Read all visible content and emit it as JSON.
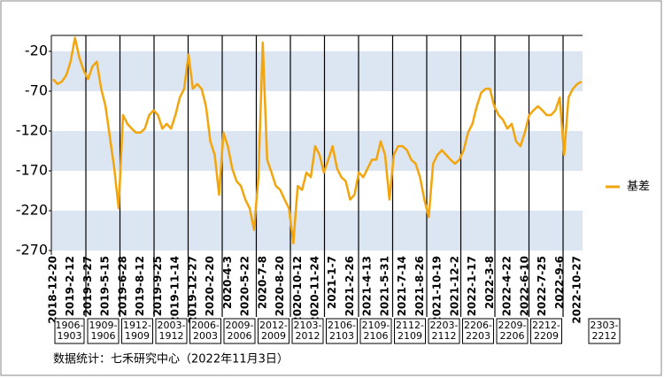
{
  "chart_data": {
    "type": "line",
    "categories": [
      "2018-12-20",
      null,
      null,
      null,
      "2019-2-12",
      null,
      null,
      null,
      "2019-3-27",
      null,
      null,
      null,
      "2019-5-15",
      null,
      null,
      null,
      "2019-6-28",
      null,
      null,
      null,
      "2019-8-12",
      null,
      null,
      null,
      "2019-9-25",
      null,
      null,
      null,
      "2019-11-14",
      null,
      null,
      null,
      "2019-12-27",
      null,
      null,
      null,
      "2020-2-20",
      null,
      null,
      null,
      "2020-4-3",
      null,
      null,
      null,
      "2020-5-22",
      null,
      null,
      null,
      "2020-7-8",
      null,
      null,
      null,
      "2020-8-20",
      null,
      null,
      null,
      "2020-10-12",
      null,
      null,
      null,
      "2020-11-24",
      null,
      null,
      null,
      "2021-1-7",
      null,
      null,
      null,
      "2021-2-26",
      null,
      null,
      null,
      "2021-4-13",
      null,
      null,
      null,
      "2021-5-31",
      null,
      null,
      null,
      "2021-7-14",
      null,
      null,
      null,
      "2021-8-26",
      null,
      null,
      null,
      "2021-10-19",
      null,
      null,
      null,
      "2021-12-2",
      null,
      null,
      null,
      "2022-1-17",
      null,
      null,
      null,
      "2022-3-8",
      null,
      null,
      null,
      "2022-4-22",
      null,
      null,
      null,
      "2022-6-10",
      null,
      null,
      null,
      "2022-7-25",
      null,
      null,
      null,
      "2022-9-6",
      null,
      null,
      null,
      "2022-10-27",
      null
    ],
    "series": [
      {
        "name": "基差",
        "color": "#f2a50c",
        "values": [
          -55,
          -61,
          -58,
          -50,
          -33,
          -3,
          -28,
          -44,
          -55,
          -39,
          -33,
          -67,
          -89,
          -128,
          -167,
          -217,
          -100,
          -111,
          -117,
          -122,
          -122,
          -117,
          -100,
          -94,
          -100,
          -117,
          -111,
          -117,
          -100,
          -78,
          -67,
          -24,
          -67,
          -61,
          -67,
          -89,
          -133,
          -150,
          -200,
          -122,
          -139,
          -167,
          -183,
          -189,
          -206,
          -217,
          -244,
          -178,
          -9,
          -156,
          -172,
          -189,
          -194,
          -206,
          -217,
          -261,
          -189,
          -194,
          -172,
          -178,
          -139,
          -150,
          -172,
          -156,
          -139,
          -167,
          -178,
          -183,
          -206,
          -200,
          -172,
          -178,
          -167,
          -156,
          -156,
          -133,
          -150,
          -206,
          -150,
          -139,
          -139,
          -144,
          -156,
          -161,
          -178,
          -206,
          -228,
          -161,
          -150,
          -144,
          -150,
          -156,
          -161,
          -156,
          -144,
          -122,
          -111,
          -89,
          -72,
          -67,
          -67,
          -89,
          -100,
          -106,
          -117,
          -111,
          -133,
          -139,
          -122,
          -100,
          -94,
          -89,
          -94,
          -100,
          -100,
          -94,
          -78,
          -150,
          -78,
          -67,
          -61,
          -58
        ]
      }
    ],
    "ylim": [
      -270,
      0
    ],
    "yticks": [
      -20,
      -70,
      -120,
      -170,
      -220,
      -270
    ],
    "bands": true,
    "legend": "right",
    "contracts": [
      [
        "1906-",
        "1903"
      ],
      [
        "1909-",
        "1906"
      ],
      [
        "1912-",
        "1909"
      ],
      [
        "2003-",
        "1912"
      ],
      [
        "2006-",
        "2003"
      ],
      [
        "2009-",
        "2006"
      ],
      [
        "2012-",
        "2009"
      ],
      [
        "2103-",
        "2012"
      ],
      [
        "2106-",
        "2103"
      ],
      [
        "2109-",
        "2106"
      ],
      [
        "2112-",
        "2109"
      ],
      [
        "2203-",
        "2112"
      ],
      [
        "2206-",
        "2203"
      ],
      [
        "2209-",
        "2206"
      ],
      [
        "2212-",
        "2209"
      ],
      [
        "2303-",
        "2212"
      ]
    ],
    "source": "数据统计：七禾研究中心（2022年11月3日）"
  }
}
